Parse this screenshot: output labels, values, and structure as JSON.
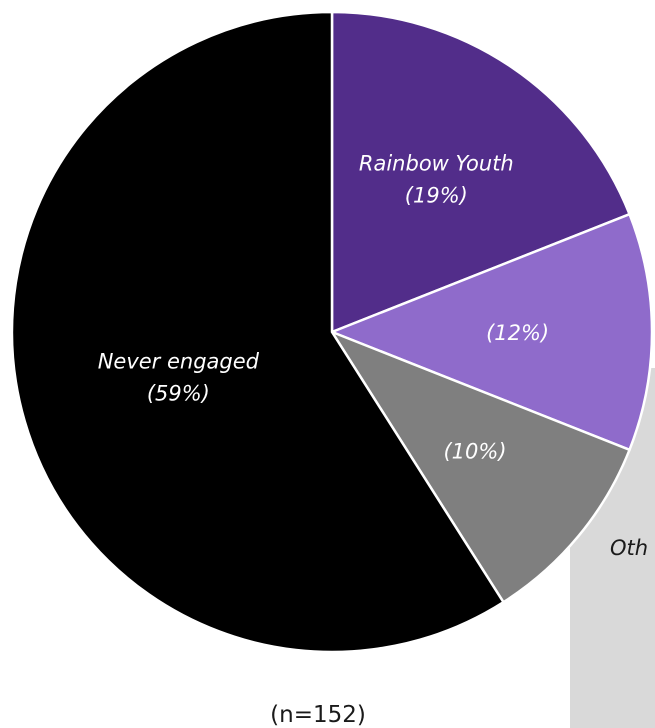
{
  "chart_data": {
    "type": "pie",
    "note": "(n=152)",
    "slices": [
      {
        "label": "Rainbow Youth",
        "pct_label": "(19%)",
        "value": 19,
        "color": "#522d8a"
      },
      {
        "label": "",
        "pct_label": "(12%)",
        "value": 12,
        "color": "#8f6bcb"
      },
      {
        "label": "",
        "pct_label": "(10%)",
        "value": 10,
        "color": "#7f7f7f"
      },
      {
        "label": "Never engaged",
        "pct_label": "(59%)",
        "value": 59,
        "color": "#000000"
      }
    ],
    "callout_text": "Oth"
  }
}
